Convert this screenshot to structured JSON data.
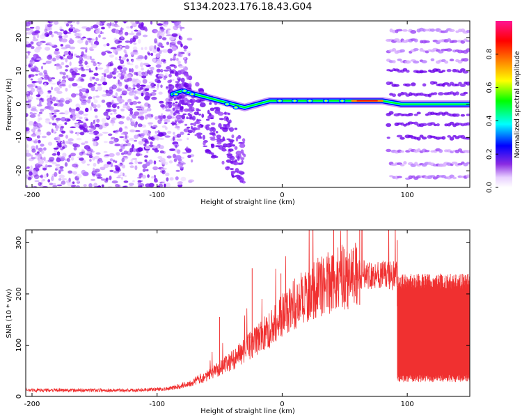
{
  "title": "S134.2023.176.18.43.G04",
  "colors": {
    "snr_line": "#f03030",
    "axes": "#000000",
    "colormap": [
      "#ffffff",
      "#e8d0ff",
      "#c89cff",
      "#8a2be2",
      "#0000ff",
      "#00ffff",
      "#00ff00",
      "#ffff00",
      "#ff8000",
      "#ff0000",
      "#ff00ff"
    ]
  },
  "chart_data": [
    {
      "type": "heatmap",
      "name": "spectrogram",
      "xlabel": "Height of straight line (km)",
      "ylabel": "Frequency (Hz)",
      "xlim": [
        -205,
        150
      ],
      "ylim": [
        -25,
        25
      ],
      "xticks": [
        -200,
        -100,
        0,
        100
      ],
      "yticks": [
        -20,
        -10,
        0,
        10,
        20
      ],
      "colorbar": {
        "label": "Normalized spectral amplitude",
        "range": [
          0,
          1
        ],
        "ticks": [
          0.0,
          0.2,
          0.4,
          0.6,
          0.8
        ]
      },
      "features": {
        "noise_region_x": [
          -205,
          -80
        ],
        "main_ridge": [
          {
            "x": -88,
            "y": 3
          },
          {
            "x": -80,
            "y": 4
          },
          {
            "x": -70,
            "y": 3
          },
          {
            "x": -60,
            "y": 2
          },
          {
            "x": -50,
            "y": 1
          },
          {
            "x": -40,
            "y": 0
          },
          {
            "x": -30,
            "y": -1
          },
          {
            "x": -20,
            "y": 0
          },
          {
            "x": -10,
            "y": 1
          },
          {
            "x": 0,
            "y": 1
          },
          {
            "x": 20,
            "y": 1
          },
          {
            "x": 40,
            "y": 1
          },
          {
            "x": 60,
            "y": 1
          },
          {
            "x": 80,
            "y": 1
          },
          {
            "x": 95,
            "y": 0
          },
          {
            "x": 120,
            "y": 0
          },
          {
            "x": 150,
            "y": 0
          }
        ],
        "harmonic_bands_x": [
          85,
          150
        ],
        "harmonic_bands_y": [
          -22,
          -18,
          -14,
          -10,
          -6,
          -3,
          3,
          6,
          10,
          13,
          16,
          19,
          22
        ]
      }
    },
    {
      "type": "line",
      "name": "snr",
      "xlabel": "Height of straight line (km)",
      "ylabel": "SNR (10 * v/v)",
      "xlim": [
        -205,
        150
      ],
      "ylim": [
        0,
        325
      ],
      "xticks": [
        -200,
        -100,
        0,
        100
      ],
      "yticks": [
        0,
        100,
        200,
        300
      ],
      "trend": [
        {
          "x": -205,
          "y": 12
        },
        {
          "x": -120,
          "y": 12
        },
        {
          "x": -90,
          "y": 15
        },
        {
          "x": -75,
          "y": 25
        },
        {
          "x": -60,
          "y": 40
        },
        {
          "x": -40,
          "y": 70
        },
        {
          "x": -25,
          "y": 100
        },
        {
          "x": -10,
          "y": 130
        },
        {
          "x": 0,
          "y": 160
        },
        {
          "x": 15,
          "y": 190
        },
        {
          "x": 30,
          "y": 215
        },
        {
          "x": 45,
          "y": 230
        },
        {
          "x": 60,
          "y": 238
        },
        {
          "x": 75,
          "y": 238
        },
        {
          "x": 90,
          "y": 235
        },
        {
          "x": 150,
          "y": 230
        }
      ],
      "alternating_region": {
        "x": [
          92,
          150
        ],
        "low": 35,
        "high": 225
      },
      "spikes": [
        {
          "x": -50,
          "y": 155
        },
        {
          "x": -24,
          "y": 250
        },
        {
          "x": -1,
          "y": 240
        },
        {
          "x": 52,
          "y": 325
        },
        {
          "x": 62,
          "y": 325
        },
        {
          "x": 92,
          "y": 305
        }
      ]
    }
  ]
}
